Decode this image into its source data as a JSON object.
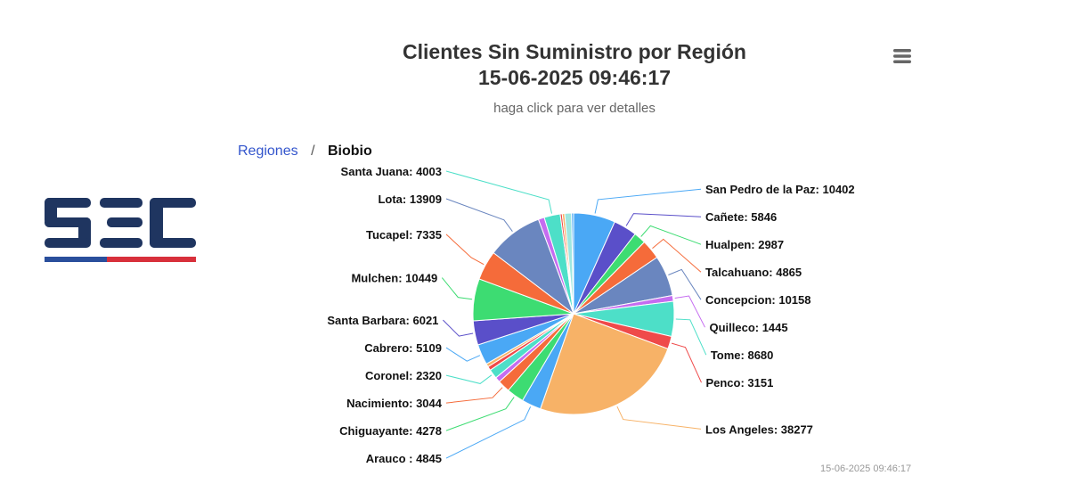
{
  "header": {
    "title_line1": "Clientes Sin Suministro por Región",
    "title_line2": "15-06-2025 09:46:17",
    "subtitle": "haga click para ver detalles"
  },
  "menu": {
    "icon": "hamburger-menu-icon"
  },
  "breadcrumb": {
    "parent": "Regiones",
    "separator": "/",
    "current": "Biobio"
  },
  "logo": {
    "text": "SEC",
    "colors": {
      "letters": "#1f3560",
      "stripe_blue": "#2a4f9c",
      "stripe_red": "#d8303b"
    }
  },
  "credits": "15-06-2025 09:46:17",
  "chart_data": {
    "type": "pie",
    "title": "Clientes Sin Suministro por Región",
    "slices": [
      {
        "name": "San Pedro de la Paz",
        "value": 10402,
        "label": "San Pedro de la Paz: 10402",
        "color": "#4aa8f5"
      },
      {
        "name": "Cañete",
        "value": 5846,
        "label": "Cañete: 5846",
        "color": "#5a4fc9"
      },
      {
        "name": "Hualpen",
        "value": 2987,
        "label": "Hualpen: 2987",
        "color": "#3ddc72"
      },
      {
        "name": "Talcahuano",
        "value": 4865,
        "label": "Talcahuano: 4865",
        "color": "#f56b3a"
      },
      {
        "name": "Concepcion",
        "value": 10158,
        "label": "Concepcion: 10158",
        "color": "#6a86bf"
      },
      {
        "name": "Quilleco",
        "value": 1445,
        "label": "Quilleco: 1445",
        "color": "#c56cf0"
      },
      {
        "name": "Tome",
        "value": 8680,
        "label": "Tome: 8680",
        "color": "#4ddfc8"
      },
      {
        "name": "Penco",
        "value": 3151,
        "label": "Penco: 3151",
        "color": "#ef4a4a"
      },
      {
        "name": "Los Angeles",
        "value": 38277,
        "label": "Los Angeles: 38277",
        "color": "#f7b267"
      },
      {
        "name": "Arauco",
        "value": 4845,
        "label": "Arauco : 4845",
        "color": "#4aa8f5"
      },
      {
        "name": "Chiguayante",
        "value": 4278,
        "label": "Chiguayante: 4278",
        "color": "#3ddc72"
      },
      {
        "name": "Nacimiento",
        "value": 3044,
        "label": "Nacimiento: 3044",
        "color": "#f56b3a"
      },
      {
        "name": "",
        "value": 1300,
        "label": "",
        "color": "#c56cf0"
      },
      {
        "name": "Coronel",
        "value": 2320,
        "label": "Coronel: 2320",
        "color": "#4ddfc8"
      },
      {
        "name": "",
        "value": 1000,
        "label": "",
        "color": "#ef4a4a"
      },
      {
        "name": "",
        "value": 800,
        "label": "",
        "color": "#f7b267"
      },
      {
        "name": "Cabrero",
        "value": 5109,
        "label": "Cabrero: 5109",
        "color": "#4aa8f5"
      },
      {
        "name": "Santa Barbara",
        "value": 6021,
        "label": "Santa Barbara: 6021",
        "color": "#5a4fc9"
      },
      {
        "name": "Mulchen",
        "value": 10449,
        "label": "Mulchen: 10449",
        "color": "#3ddc72"
      },
      {
        "name": "Tucapel",
        "value": 7335,
        "label": "Tucapel: 7335",
        "color": "#f56b3a"
      },
      {
        "name": "Lota",
        "value": 13909,
        "label": "Lota: 13909",
        "color": "#6a86bf"
      },
      {
        "name": "",
        "value": 1500,
        "label": "",
        "color": "#c56cf0"
      },
      {
        "name": "Santa Juana",
        "value": 4003,
        "label": "Santa Juana: 4003",
        "color": "#4ddfc8"
      },
      {
        "name": "",
        "value": 500,
        "label": "",
        "color": "#ef4a4a"
      },
      {
        "name": "",
        "value": 600,
        "label": "",
        "color": "#f7b267"
      },
      {
        "name": "",
        "value": 1700,
        "label": "",
        "color": "#9ee7e0"
      },
      {
        "name": "",
        "value": 500,
        "label": "",
        "color": "#4aa8f5"
      }
    ]
  }
}
